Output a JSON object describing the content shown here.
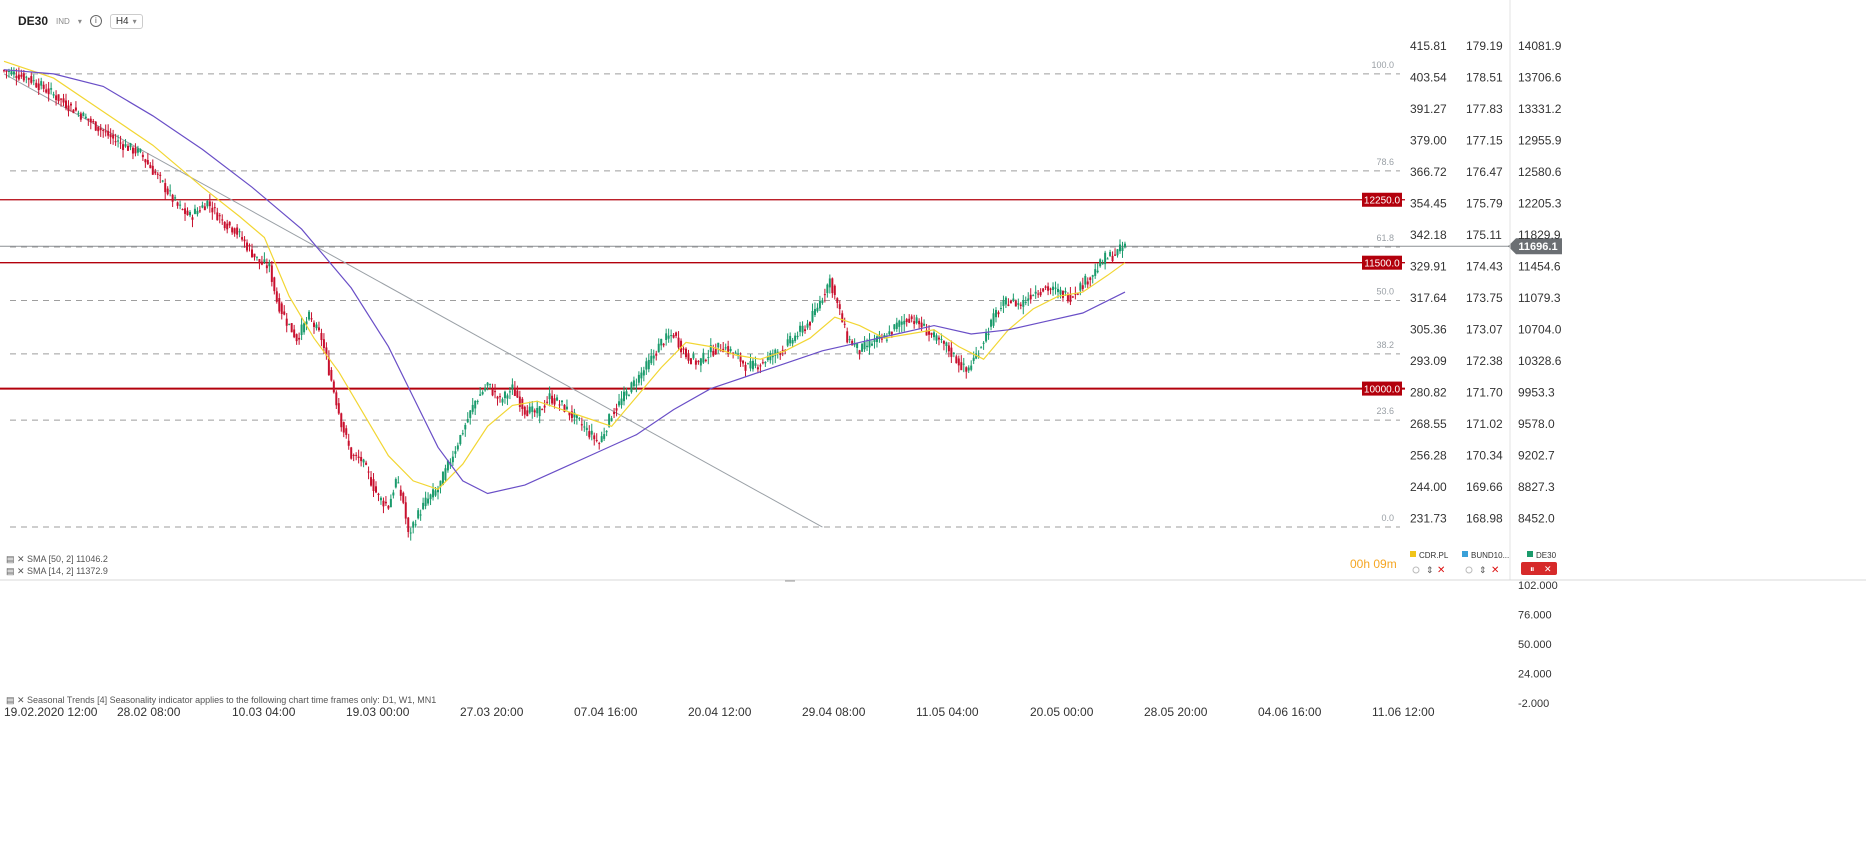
{
  "toolbar": {
    "symbol": "DE30",
    "symbol_type": "IND",
    "timeframe": "H4",
    "caret_glyph": "▾",
    "info_glyph": "i"
  },
  "current_price_label": "11696.1",
  "countdown": "00h 09m",
  "indicators": {
    "sma50": "SMA [50, 2] 11046.2",
    "sma14": "SMA [14, 2] 11372.9",
    "seasonal": "Seasonal Trends [4] Seasonality indicator applies to the following chart time frames only: D1, W1, MN1"
  },
  "legend": [
    {
      "name": "CDR.PL",
      "color": "#f0c419"
    },
    {
      "name": "BUND10...",
      "color": "#3aa0d8"
    },
    {
      "name": "DE30",
      "color": "#1a9b6c"
    }
  ],
  "colors": {
    "up": "#1a9b6c",
    "down": "#c8102e",
    "sma14": "#f2d633",
    "sma50": "#6a4fc7",
    "level": "#b3000c",
    "trend": "#9aa0a6",
    "grid": "#9e9e9e"
  },
  "chart_data": {
    "type": "candlestick",
    "symbol": "DE30",
    "timeframe": "H4",
    "price_axis_de30": [
      "14081.9",
      "13706.6",
      "13331.2",
      "12955.9",
      "12580.6",
      "12205.3",
      "11829.9",
      "11454.6",
      "11079.3",
      "10704.0",
      "10328.6",
      "9953.3",
      "9578.0",
      "9202.7",
      "8827.3",
      "8452.0"
    ],
    "price_axis_bund": [
      "179.19",
      "178.51",
      "177.83",
      "177.15",
      "176.47",
      "175.79",
      "175.11",
      "174.43",
      "173.75",
      "173.07",
      "172.38",
      "171.70",
      "171.02",
      "170.34",
      "169.66",
      "168.98"
    ],
    "price_axis_cdr": [
      "415.81",
      "403.54",
      "391.27",
      "379.00",
      "366.72",
      "354.45",
      "342.18",
      "329.91",
      "317.64",
      "305.36",
      "293.09",
      "280.82",
      "268.55",
      "256.28",
      "244.00",
      "231.73"
    ],
    "time_labels": [
      "19.02.2020 12:00",
      "28.02 08:00",
      "10.03 04:00",
      "19.03 00:00",
      "27.03 20:00",
      "07.04 16:00",
      "20.04 12:00",
      "29.04 08:00",
      "11.05 04:00",
      "20.05 00:00",
      "28.05 20:00",
      "04.06 16:00",
      "11.06 12:00"
    ],
    "horizontal_levels": [
      {
        "label": "12250.0",
        "value": 12250
      },
      {
        "label": "11500.0",
        "value": 11500
      },
      {
        "label": "10000.0",
        "value": 10000
      }
    ],
    "fibonacci_levels": [
      "100.0",
      "78.6",
      "61.8",
      "50.0",
      "38.2",
      "23.6",
      "0.0"
    ],
    "seasonal_axis": [
      "102.000",
      "76.000",
      "50.000",
      "24.000",
      "-2.000"
    ],
    "price_path": [
      [
        0,
        13790
      ],
      [
        10,
        13700
      ],
      [
        20,
        13500
      ],
      [
        35,
        13180
      ],
      [
        45,
        12950
      ],
      [
        55,
        12800
      ],
      [
        63,
        12480
      ],
      [
        70,
        12170
      ],
      [
        75,
        12050
      ],
      [
        82,
        12220
      ],
      [
        88,
        12000
      ],
      [
        93,
        11900
      ],
      [
        98,
        11700
      ],
      [
        103,
        11500
      ],
      [
        107,
        11450
      ],
      [
        110,
        11050
      ],
      [
        114,
        10800
      ],
      [
        118,
        10600
      ],
      [
        123,
        10850
      ],
      [
        128,
        10600
      ],
      [
        132,
        10100
      ],
      [
        136,
        9600
      ],
      [
        140,
        9200
      ],
      [
        144,
        9150
      ],
      [
        148,
        8900
      ],
      [
        151,
        8700
      ],
      [
        155,
        8600
      ],
      [
        158,
        8900
      ],
      [
        161,
        8650
      ],
      [
        163,
        8250
      ],
      [
        166,
        8450
      ],
      [
        170,
        8650
      ],
      [
        175,
        8800
      ],
      [
        180,
        9150
      ],
      [
        185,
        9500
      ],
      [
        190,
        9850
      ],
      [
        195,
        10050
      ],
      [
        200,
        9850
      ],
      [
        205,
        10000
      ],
      [
        210,
        9750
      ],
      [
        215,
        9700
      ],
      [
        220,
        9900
      ],
      [
        225,
        9800
      ],
      [
        230,
        9650
      ],
      [
        235,
        9500
      ],
      [
        240,
        9350
      ],
      [
        245,
        9700
      ],
      [
        250,
        9900
      ],
      [
        255,
        10100
      ],
      [
        260,
        10300
      ],
      [
        265,
        10550
      ],
      [
        270,
        10650
      ],
      [
        275,
        10400
      ],
      [
        280,
        10300
      ],
      [
        285,
        10450
      ],
      [
        290,
        10500
      ],
      [
        295,
        10400
      ],
      [
        300,
        10250
      ],
      [
        305,
        10300
      ],
      [
        310,
        10400
      ],
      [
        315,
        10500
      ],
      [
        320,
        10650
      ],
      [
        325,
        10800
      ],
      [
        330,
        11100
      ],
      [
        333,
        11300
      ],
      [
        336,
        11000
      ],
      [
        340,
        10600
      ],
      [
        345,
        10450
      ],
      [
        350,
        10550
      ],
      [
        355,
        10600
      ],
      [
        360,
        10750
      ],
      [
        365,
        10850
      ],
      [
        370,
        10750
      ],
      [
        375,
        10600
      ],
      [
        380,
        10500
      ],
      [
        384,
        10350
      ],
      [
        388,
        10200
      ],
      [
        392,
        10400
      ],
      [
        396,
        10650
      ],
      [
        400,
        10900
      ],
      [
        405,
        11050
      ],
      [
        410,
        11000
      ],
      [
        415,
        11150
      ],
      [
        420,
        11200
      ],
      [
        425,
        11150
      ],
      [
        430,
        11100
      ],
      [
        435,
        11250
      ],
      [
        440,
        11400
      ],
      [
        444,
        11550
      ],
      [
        448,
        11600
      ],
      [
        452,
        11696
      ]
    ],
    "sma14_path": [
      [
        0,
        13900
      ],
      [
        20,
        13700
      ],
      [
        40,
        13300
      ],
      [
        60,
        12900
      ],
      [
        80,
        12400
      ],
      [
        95,
        12050
      ],
      [
        105,
        11800
      ],
      [
        115,
        11100
      ],
      [
        125,
        10600
      ],
      [
        135,
        10200
      ],
      [
        145,
        9700
      ],
      [
        155,
        9200
      ],
      [
        165,
        8900
      ],
      [
        175,
        8800
      ],
      [
        185,
        9100
      ],
      [
        195,
        9550
      ],
      [
        205,
        9800
      ],
      [
        215,
        9850
      ],
      [
        225,
        9750
      ],
      [
        235,
        9650
      ],
      [
        245,
        9550
      ],
      [
        255,
        9900
      ],
      [
        265,
        10250
      ],
      [
        275,
        10550
      ],
      [
        285,
        10500
      ],
      [
        295,
        10400
      ],
      [
        305,
        10350
      ],
      [
        315,
        10450
      ],
      [
        325,
        10600
      ],
      [
        335,
        10850
      ],
      [
        345,
        10750
      ],
      [
        355,
        10600
      ],
      [
        365,
        10650
      ],
      [
        375,
        10700
      ],
      [
        385,
        10500
      ],
      [
        395,
        10350
      ],
      [
        405,
        10700
      ],
      [
        415,
        10950
      ],
      [
        425,
        11100
      ],
      [
        435,
        11150
      ],
      [
        445,
        11350
      ],
      [
        452,
        11500
      ]
    ],
    "sma50_path": [
      [
        0,
        13800
      ],
      [
        20,
        13750
      ],
      [
        40,
        13600
      ],
      [
        60,
        13250
      ],
      [
        80,
        12850
      ],
      [
        100,
        12400
      ],
      [
        120,
        11900
      ],
      [
        140,
        11200
      ],
      [
        155,
        10500
      ],
      [
        165,
        9900
      ],
      [
        175,
        9300
      ],
      [
        185,
        8900
      ],
      [
        195,
        8750
      ],
      [
        210,
        8850
      ],
      [
        225,
        9050
      ],
      [
        240,
        9250
      ],
      [
        255,
        9450
      ],
      [
        270,
        9750
      ],
      [
        285,
        10000
      ],
      [
        300,
        10150
      ],
      [
        315,
        10300
      ],
      [
        330,
        10450
      ],
      [
        345,
        10550
      ],
      [
        360,
        10650
      ],
      [
        375,
        10750
      ],
      [
        390,
        10650
      ],
      [
        405,
        10700
      ],
      [
        420,
        10800
      ],
      [
        435,
        10900
      ],
      [
        452,
        11150
      ]
    ],
    "trendline": [
      [
        0,
        13750
      ],
      [
        330,
        8350
      ]
    ],
    "fib_range": [
      8350,
      13750
    ]
  }
}
